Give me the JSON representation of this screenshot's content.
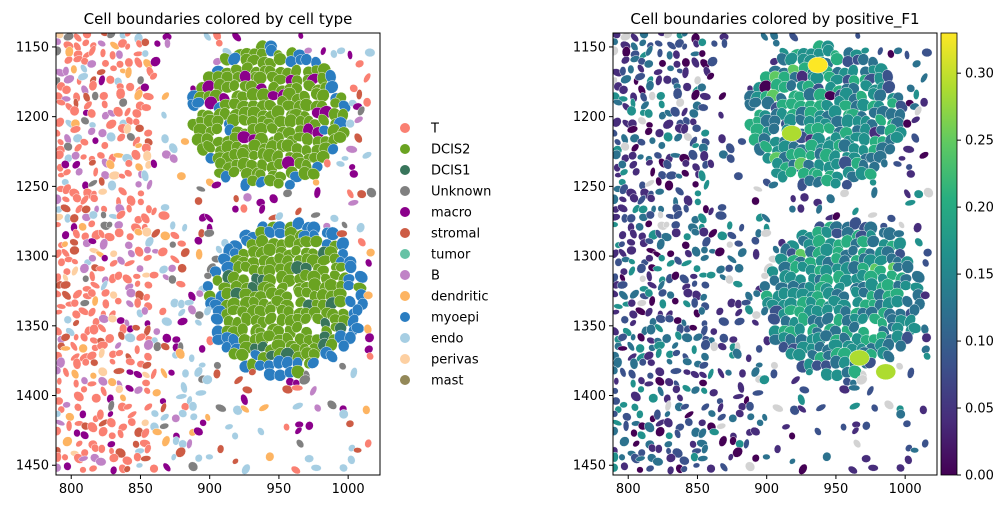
{
  "chart_data": [
    {
      "type": "scatter",
      "title": "Cell boundaries colored by cell type",
      "xlabel": "",
      "ylabel": "",
      "xlim": [
        789,
        1023
      ],
      "ylim": [
        1140,
        1457
      ],
      "y_inverted": true,
      "xticks": [
        800,
        850,
        900,
        950,
        1000
      ],
      "yticks": [
        1150,
        1200,
        1250,
        1300,
        1350,
        1400,
        1450
      ],
      "legend_position": "right-outside",
      "categories": [
        {
          "name": "T",
          "color": "#fa8072"
        },
        {
          "name": "DCIS2",
          "color": "#6aa321"
        },
        {
          "name": "DCIS1",
          "color": "#38755b"
        },
        {
          "name": "Unknown",
          "color": "#808080"
        },
        {
          "name": "macro",
          "color": "#8b008b"
        },
        {
          "name": "stromal",
          "color": "#cd5c45"
        },
        {
          "name": "tumor",
          "color": "#66c2a5"
        },
        {
          "name": "B",
          "color": "#c083c6"
        },
        {
          "name": "dendritic",
          "color": "#fdb462"
        },
        {
          "name": "myoepi",
          "color": "#2a7dc1"
        },
        {
          "name": "endo",
          "color": "#a6cee3"
        },
        {
          "name": "perivas",
          "color": "#fdd0a2"
        },
        {
          "name": "mast",
          "color": "#938858"
        }
      ],
      "regions": [
        {
          "label": "T",
          "cx": 820,
          "cy": 1240,
          "rx": 25,
          "ry": 100
        },
        {
          "label": "DCIS2",
          "cx": 942,
          "cy": 1200,
          "rx": 55,
          "ry": 50
        },
        {
          "label": "DCIS2",
          "cx": 955,
          "cy": 1330,
          "rx": 55,
          "ry": 55
        },
        {
          "label": "myoepi",
          "cx": 940,
          "cy": 1330,
          "rx": 62,
          "ry": 60
        },
        {
          "label": "macro",
          "cx": 862,
          "cy": 1390,
          "rx": 20,
          "ry": 25
        },
        {
          "label": "endo",
          "cx": 905,
          "cy": 1200,
          "rx": 12,
          "ry": 40
        }
      ]
    },
    {
      "type": "scatter",
      "title": "Cell boundaries colored by positive_F1",
      "xlabel": "",
      "ylabel": "",
      "xlim": [
        789,
        1023
      ],
      "ylim": [
        1140,
        1457
      ],
      "y_inverted": true,
      "xticks": [
        800,
        850,
        900,
        950,
        1000
      ],
      "yticks": [
        1150,
        1200,
        1250,
        1300,
        1350,
        1400,
        1450
      ],
      "colorbar": {
        "cmap": "viridis",
        "vmin": 0.0,
        "vmax": 0.33,
        "ticks": [
          "0.00",
          "0.05",
          "0.10",
          "0.15",
          "0.20",
          "0.25",
          "0.30"
        ],
        "tick_values": [
          0.0,
          0.05,
          0.1,
          0.15,
          0.2,
          0.25,
          0.3
        ]
      },
      "missing_color": "#d3d3d3",
      "high_value_cells": [
        {
          "x": 937,
          "y": 1163,
          "value": 0.32
        },
        {
          "x": 986,
          "y": 1383,
          "value": 0.3
        },
        {
          "x": 967,
          "y": 1373,
          "value": 0.27
        },
        {
          "x": 918,
          "y": 1212,
          "value": 0.27
        }
      ]
    }
  ]
}
